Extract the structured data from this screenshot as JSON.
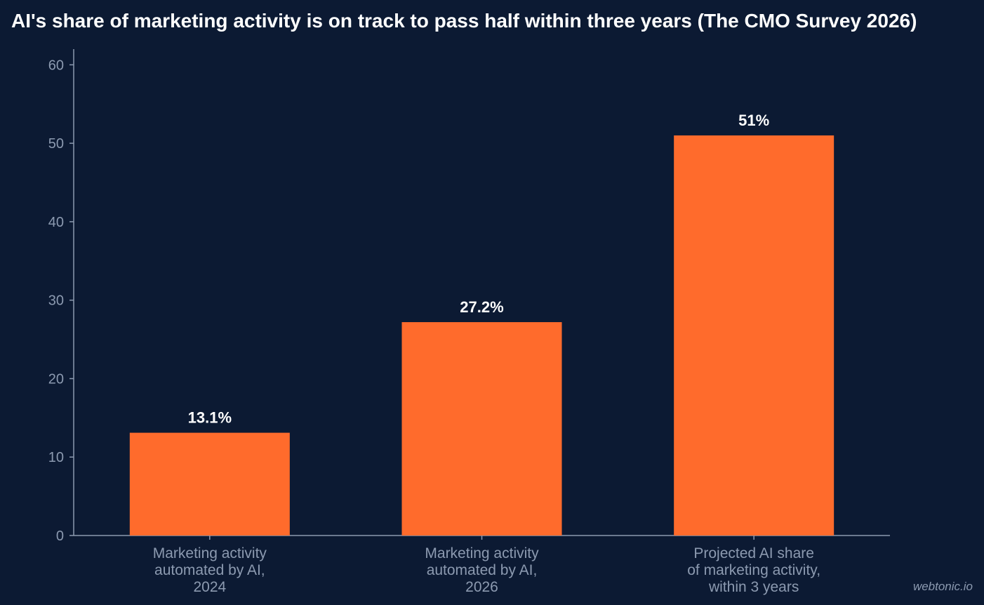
{
  "chart_data": {
    "type": "bar",
    "title": "AI's share of marketing activity is on track to pass half within three years (The CMO Survey 2026)",
    "categories": [
      [
        "Marketing activity",
        "automated by AI,",
        "2024"
      ],
      [
        "Marketing activity",
        "automated by AI,",
        "2026"
      ],
      [
        "Projected AI share",
        "of marketing activity,",
        "within 3 years"
      ]
    ],
    "values": [
      13.1,
      27.2,
      51
    ],
    "data_labels": [
      "13.1%",
      "27.2%",
      "51%"
    ],
    "ylim": [
      0,
      62
    ],
    "yticks": [
      0,
      10,
      20,
      30,
      40,
      50,
      60
    ],
    "xlabel": "",
    "ylabel": "",
    "grid": false,
    "colors": {
      "bar": "#ff6b2c",
      "background": "#0c1a33",
      "axis": "#8c9ab0",
      "text": "#ffffff"
    }
  },
  "watermark": "webtonic.io"
}
